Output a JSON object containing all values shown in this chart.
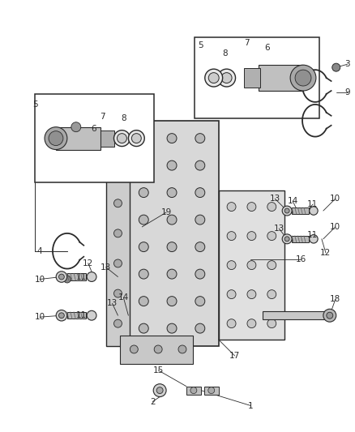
{
  "bg_color": "#ffffff",
  "fig_width": 4.38,
  "fig_height": 5.33,
  "dpi": 100,
  "lc": "#2a2a2a",
  "gray1": "#888888",
  "gray2": "#aaaaaa",
  "gray3": "#cccccc",
  "fs": 7.5
}
